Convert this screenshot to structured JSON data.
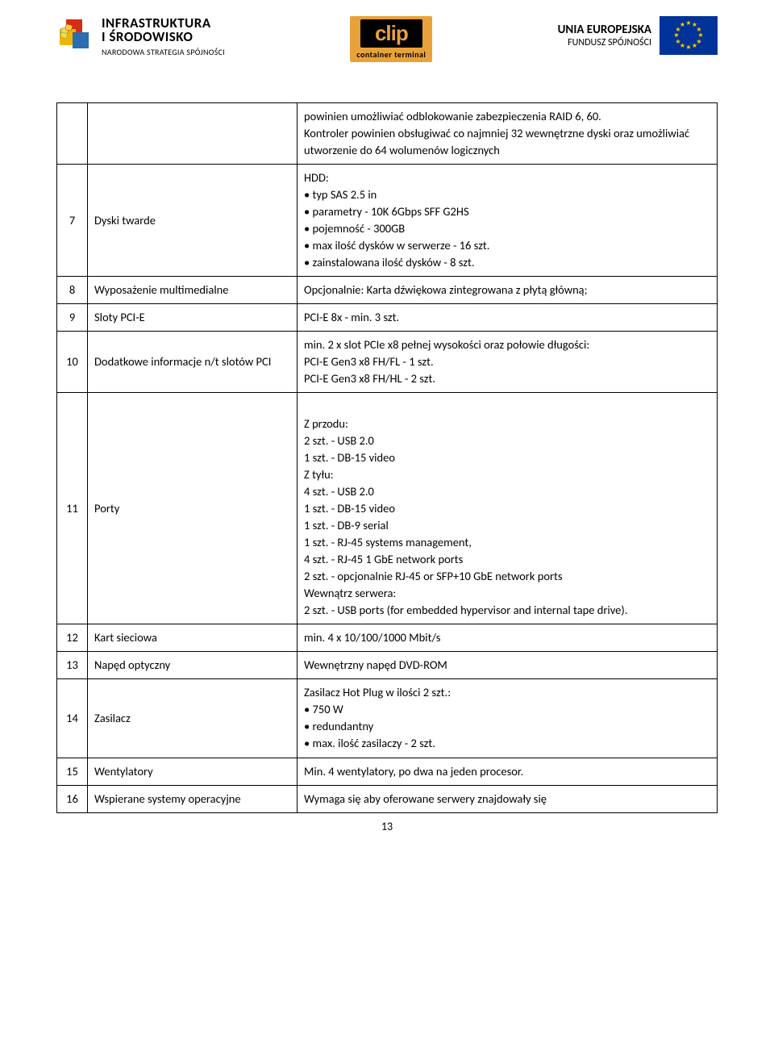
{
  "header": {
    "left": {
      "line1": "INFRASTRUKTURA",
      "line2": "I ŚRODOWISKO",
      "line3": "NARODOWA STRATEGIA SPÓJNOŚCI"
    },
    "center": {
      "brand": "clip",
      "sub": "container terminal"
    },
    "right": {
      "line1": "UNIA EUROPEJSKA",
      "line2": "FUNDUSZ SPÓJNOŚCI"
    }
  },
  "rows": [
    {
      "num": "",
      "label": "",
      "value": "powinien umożliwiać odblokowanie zabezpieczenia RAID 6, 60.\nKontroler powinien obsługiwać co najmniej 32 wewnętrzne dyski oraz umożliwiać utworzenie do 64 wolumenów logicznych"
    },
    {
      "num": "7",
      "label": "Dyski twarde",
      "value": "HDD:\n• typ SAS 2.5 in\n• parametry - 10K 6Gbps SFF G2HS\n• pojemność - 300GB\n• max ilość dysków w serwerze - 16 szt.\n• zainstalowana ilość dysków - 8 szt."
    },
    {
      "num": "8",
      "label": "Wyposażenie multimedialne",
      "value": "Opcjonalnie: Karta dźwiękowa zintegrowana z płytą główną;"
    },
    {
      "num": "9",
      "label": "Sloty PCI-E",
      "value": "PCI-E 8x - min. 3 szt."
    },
    {
      "num": "10",
      "label": "Dodatkowe informacje n/t slotów PCI",
      "value": "min. 2 x slot PCIe x8 pełnej wysokości oraz połowie długości:\nPCI-E Gen3 x8 FH/FL - 1 szt.\nPCI-E Gen3 x8 FH/HL - 2 szt."
    },
    {
      "num": "11",
      "label": "Porty",
      "value": "Z przodu:\n2 szt. - USB 2.0\n1 szt. - DB-15 video\nZ tyłu:\n4 szt. - USB 2.0\n1 szt. - DB-15 video\n1 szt. - DB-9 serial\n1 szt. - RJ-45 systems management,\n4 szt. - RJ-45  1 GbE network ports\n2 szt. - opcjonalnie RJ-45 or SFP+10 GbE network ports\nWewnątrz serwera:\n2 szt. -  USB ports (for embedded hypervisor and internal tape drive).",
      "pad": true
    },
    {
      "num": "12",
      "label": "Kart sieciowa",
      "value": "min. 4 x 10/100/1000 Mbit/s"
    },
    {
      "num": "13",
      "label": "Napęd optyczny",
      "value": "Wewnętrzny napęd DVD-ROM"
    },
    {
      "num": "14",
      "label": "Zasilacz",
      "value": "Zasilacz Hot Plug w ilości 2 szt.:\n• 750 W\n• redundantny\n• max. ilość zasilaczy - 2 szt."
    },
    {
      "num": "15",
      "label": "Wentylatory",
      "value": "Min. 4 wentylatory, po dwa na jeden procesor."
    },
    {
      "num": "16",
      "label": "Wspierane systemy operacyjne",
      "value": "Wymaga się aby oferowane serwery znajdowały się",
      "justify": true
    }
  ],
  "page_number": "13",
  "colors": {
    "border": "#000000",
    "clip_bg": "#e8a23a",
    "eu_blue": "#003399",
    "eu_gold": "#ffcc00"
  }
}
